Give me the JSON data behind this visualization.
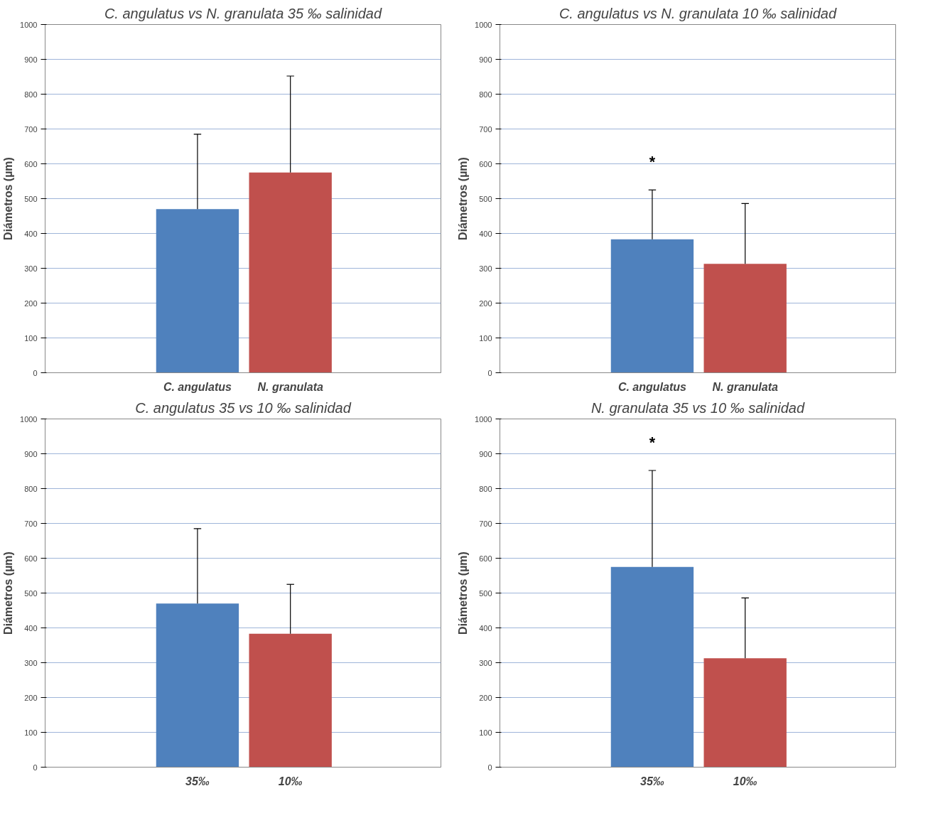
{
  "chart_data": [
    {
      "type": "bar",
      "title": "C. angulatus vs N. granulata 35 ‰ salinidad",
      "ylabel": "Diámetros (µm)",
      "categories": [
        "C. angulatus",
        "N. granulata"
      ],
      "values": [
        470,
        575
      ],
      "colors": [
        "#4f81bd",
        "#c0504d"
      ],
      "errors": [
        [
          470,
          685
        ],
        [
          575,
          852
        ]
      ],
      "ylim": [
        0,
        1000
      ],
      "yticks": [
        0,
        100,
        200,
        300,
        400,
        500,
        600,
        700,
        800,
        900,
        1000
      ],
      "grid": "y"
    },
    {
      "type": "bar",
      "title": "C. angulatus vs N. granulata 10 ‰ salinidad",
      "ylabel": "Diámetros (µm)",
      "categories": [
        "C. angulatus",
        "N. granulata"
      ],
      "values": [
        383,
        313
      ],
      "colors": [
        "#4f81bd",
        "#c0504d"
      ],
      "errors": [
        [
          383,
          525
        ],
        [
          313,
          486
        ]
      ],
      "ylim": [
        0,
        1000
      ],
      "yticks": [
        0,
        100,
        200,
        300,
        400,
        500,
        600,
        700,
        800,
        900,
        1000
      ],
      "grid": "y",
      "annotations": [
        "*"
      ]
    },
    {
      "type": "bar",
      "title": "C. angulatus 35 vs 10 ‰ salinidad",
      "ylabel": "Diámetros (µm)",
      "categories": [
        "35‰",
        "10‰"
      ],
      "values": [
        470,
        383
      ],
      "colors": [
        "#4f81bd",
        "#c0504d"
      ],
      "errors": [
        [
          470,
          685
        ],
        [
          383,
          525
        ]
      ],
      "ylim": [
        0,
        1000
      ],
      "yticks": [
        0,
        100,
        200,
        300,
        400,
        500,
        600,
        700,
        800,
        900,
        1000
      ],
      "grid": "y"
    },
    {
      "type": "bar",
      "title": "N. granulata 35 vs 10 ‰ salinidad",
      "ylabel": "Diámetros (µm)",
      "categories": [
        "35‰",
        "10‰"
      ],
      "values": [
        575,
        313
      ],
      "colors": [
        "#4f81bd",
        "#c0504d"
      ],
      "errors": [
        [
          575,
          852
        ],
        [
          313,
          486
        ]
      ],
      "ylim": [
        0,
        1000
      ],
      "yticks": [
        0,
        100,
        200,
        300,
        400,
        500,
        600,
        700,
        800,
        900,
        1000
      ],
      "grid": "y",
      "annotations": [
        "*"
      ]
    }
  ]
}
